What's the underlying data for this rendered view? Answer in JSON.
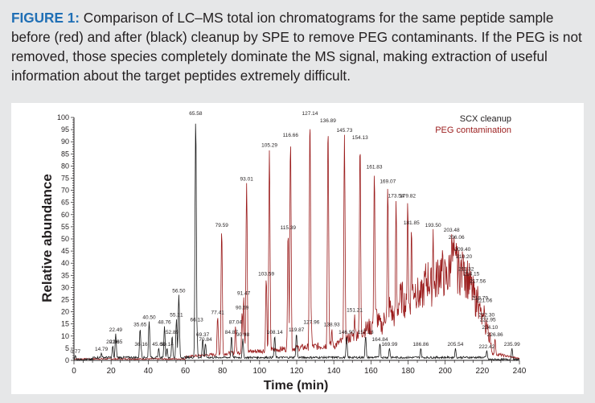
{
  "caption": {
    "label": "FIGURE 1:",
    "text": " Comparison of LC–MS total ion chromatograms for the same peptide sample before (red) and after (black) cleanup by SPE to remove PEG contaminants. If the PEG is not removed, those species completely dominate the MS signal, making extraction of useful information about the target peptides extremely difficult."
  },
  "chart_data": {
    "type": "line",
    "title": "",
    "xlabel": "Time (min)",
    "ylabel": "Relative abundance",
    "xlim": [
      0,
      240
    ],
    "ylim": [
      0,
      100
    ],
    "x_ticks": [
      0,
      20,
      40,
      60,
      80,
      100,
      120,
      140,
      160,
      180,
      200,
      220,
      240
    ],
    "y_ticks": [
      0,
      5,
      10,
      15,
      20,
      25,
      30,
      35,
      40,
      45,
      50,
      55,
      60,
      65,
      70,
      75,
      80,
      85,
      90,
      95,
      100
    ],
    "legend": {
      "placement": "top-right"
    },
    "colors": {
      "black": "#1a1a1a",
      "red": "#9b1c1c"
    },
    "series": [
      {
        "name": "SCX cleanup",
        "color": "#1a1a1a",
        "peaks": [
          {
            "t": 0.77,
            "y": 2,
            "label": "0.77"
          },
          {
            "t": 14.79,
            "y": 3,
            "label": "14.79"
          },
          {
            "t": 20.9,
            "y": 6,
            "label": "20.90"
          },
          {
            "t": 22.49,
            "y": 11,
            "label": "22.49"
          },
          {
            "t": 22.65,
            "y": 6,
            "label": "22.65"
          },
          {
            "t": 35.65,
            "y": 13,
            "label": "35.65"
          },
          {
            "t": 36.16,
            "y": 5,
            "label": "36.16"
          },
          {
            "t": 40.5,
            "y": 16,
            "label": "40.50"
          },
          {
            "t": 45.66,
            "y": 5,
            "label": "45.66"
          },
          {
            "t": 48.76,
            "y": 14,
            "label": "48.76"
          },
          {
            "t": 50.14,
            "y": 5,
            "label": "50.14"
          },
          {
            "t": 52.89,
            "y": 10,
            "label": "52.89"
          },
          {
            "t": 55.21,
            "y": 17,
            "label": "55.21"
          },
          {
            "t": 56.5,
            "y": 27,
            "label": "56.50"
          },
          {
            "t": 65.58,
            "y": 100,
            "label": "65.58"
          },
          {
            "t": 66.13,
            "y": 15,
            "label": "66.13"
          },
          {
            "t": 69.37,
            "y": 9,
            "label": "69.37"
          },
          {
            "t": 70.84,
            "y": 7,
            "label": "70.84"
          },
          {
            "t": 84.87,
            "y": 10,
            "label": "84.87"
          },
          {
            "t": 90.98,
            "y": 9,
            "label": "90.98"
          },
          {
            "t": 108.14,
            "y": 10,
            "label": "108.14"
          },
          {
            "t": 119.87,
            "y": 11,
            "label": "119.87"
          },
          {
            "t": 146.9,
            "y": 10,
            "label": "146.90"
          },
          {
            "t": 157.13,
            "y": 10,
            "label": "157.13"
          },
          {
            "t": 164.84,
            "y": 7,
            "label": "164.84"
          },
          {
            "t": 169.99,
            "y": 5,
            "label": "169.99"
          },
          {
            "t": 186.86,
            "y": 5,
            "label": "186.86"
          },
          {
            "t": 205.54,
            "y": 5,
            "label": "205.54"
          },
          {
            "t": 222.42,
            "y": 4,
            "label": "222.42"
          },
          {
            "t": 235.99,
            "y": 5,
            "label": "235.99"
          }
        ]
      },
      {
        "name": "PEG contamination",
        "color": "#9b1c1c",
        "peaks": [
          {
            "t": 77.41,
            "y": 18,
            "label": "77.41"
          },
          {
            "t": 79.59,
            "y": 54,
            "label": "79.59"
          },
          {
            "t": 87.04,
            "y": 14,
            "label": "87.04"
          },
          {
            "t": 90.59,
            "y": 20,
            "label": "90.59"
          },
          {
            "t": 91.47,
            "y": 26,
            "label": "91.47"
          },
          {
            "t": 93.01,
            "y": 73,
            "label": "93.01"
          },
          {
            "t": 103.59,
            "y": 34,
            "label": "103.59"
          },
          {
            "t": 105.29,
            "y": 87,
            "label": "105.29"
          },
          {
            "t": 115.39,
            "y": 53,
            "label": "115.39"
          },
          {
            "t": 116.66,
            "y": 91,
            "label": "116.66"
          },
          {
            "t": 127.14,
            "y": 100,
            "label": "127.14"
          },
          {
            "t": 127.96,
            "y": 14,
            "label": "127.96"
          },
          {
            "t": 136.89,
            "y": 97,
            "label": "136.89"
          },
          {
            "t": 138.93,
            "y": 13,
            "label": "138.93"
          },
          {
            "t": 145.73,
            "y": 93,
            "label": "145.73"
          },
          {
            "t": 151.21,
            "y": 19,
            "label": "151.21"
          },
          {
            "t": 154.13,
            "y": 90,
            "label": "154.13"
          },
          {
            "t": 161.83,
            "y": 78,
            "label": "161.83"
          },
          {
            "t": 169.07,
            "y": 72,
            "label": "169.07"
          },
          {
            "t": 173.54,
            "y": 66,
            "label": "173.54"
          },
          {
            "t": 179.82,
            "y": 66,
            "label": "179.82"
          },
          {
            "t": 181.85,
            "y": 55,
            "label": "181.85"
          },
          {
            "t": 193.5,
            "y": 54,
            "label": "193.50"
          },
          {
            "t": 203.48,
            "y": 52,
            "label": "203.48"
          },
          {
            "t": 206.06,
            "y": 49,
            "label": "206.06"
          },
          {
            "t": 209.4,
            "y": 44,
            "label": "209.40"
          },
          {
            "t": 210.2,
            "y": 41,
            "label": "210.20"
          },
          {
            "t": 211.32,
            "y": 36,
            "label": "211.32"
          },
          {
            "t": 214.15,
            "y": 34,
            "label": "214.15"
          },
          {
            "t": 217.56,
            "y": 31,
            "label": "217.56"
          },
          {
            "t": 218.79,
            "y": 24,
            "label": "218.79"
          },
          {
            "t": 221.06,
            "y": 23,
            "label": "221.06"
          },
          {
            "t": 222.3,
            "y": 17,
            "label": "222.30"
          },
          {
            "t": 222.95,
            "y": 15,
            "label": "222.95"
          },
          {
            "t": 224.1,
            "y": 12,
            "label": "224.10"
          },
          {
            "t": 226.86,
            "y": 9,
            "label": "226.86"
          }
        ]
      }
    ]
  }
}
